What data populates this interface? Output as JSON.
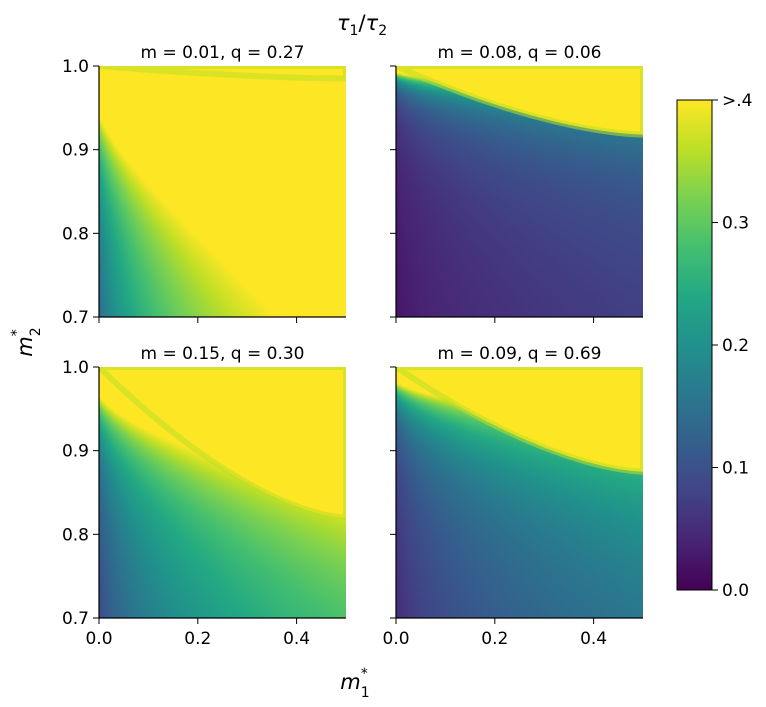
{
  "chart_data": {
    "type": "heatmap",
    "suptitle_numerator": "τ",
    "suptitle_num_sub": "1",
    "suptitle_slash": "/",
    "suptitle_denominator": "τ",
    "suptitle_den_sub": "2",
    "xlabel_base": "m",
    "xlabel_sup": "*",
    "xlabel_sub": "1",
    "ylabel_base": "m",
    "ylabel_sup": "*",
    "ylabel_sub": "2",
    "xlim": [
      0.0,
      0.5
    ],
    "ylim": [
      0.7,
      1.0
    ],
    "x_ticks": [
      0.0,
      0.2,
      0.4
    ],
    "x_tick_labels": [
      "0.0",
      "0.2",
      "0.4"
    ],
    "y_ticks": [
      0.7,
      0.8,
      0.9,
      1.0
    ],
    "y_tick_labels": [
      "0.7",
      "0.8",
      "0.9",
      "1.0"
    ],
    "colormap": "viridis",
    "color_range": [
      0.0,
      0.4
    ],
    "colorbar_ticks": [
      0.0,
      0.1,
      0.2,
      0.3,
      0.4
    ],
    "colorbar_tick_labels": [
      "0.0",
      "0.1",
      "0.2",
      "0.3",
      ">.4"
    ],
    "panels": [
      {
        "title": "m = 0.01, q = 0.27",
        "m": 0.01,
        "q": 0.27,
        "scale": 2.8,
        "ref_value": 0.02,
        "boundary": [
          [
            0.0,
            1.0
          ],
          [
            0.5,
            0.985
          ]
        ]
      },
      {
        "title": "m = 0.08, q = 0.06",
        "m": 0.08,
        "q": 0.06,
        "scale": 0.47,
        "ref_value": 0.16,
        "boundary": [
          [
            0.0,
            1.0
          ],
          [
            0.5,
            0.918
          ]
        ]
      },
      {
        "title": "m = 0.15, q = 0.30",
        "m": 0.15,
        "q": 0.3,
        "scale": 1.8,
        "ref_value": 0.32,
        "boundary": [
          [
            0.0,
            1.0
          ],
          [
            0.5,
            0.82
          ]
        ]
      },
      {
        "title": "m = 0.09, q = 0.69",
        "m": 0.09,
        "q": 0.69,
        "scale": 1.0,
        "ref_value": 0.2,
        "boundary": [
          [
            0.0,
            1.0
          ],
          [
            0.5,
            0.875
          ]
        ]
      }
    ]
  }
}
